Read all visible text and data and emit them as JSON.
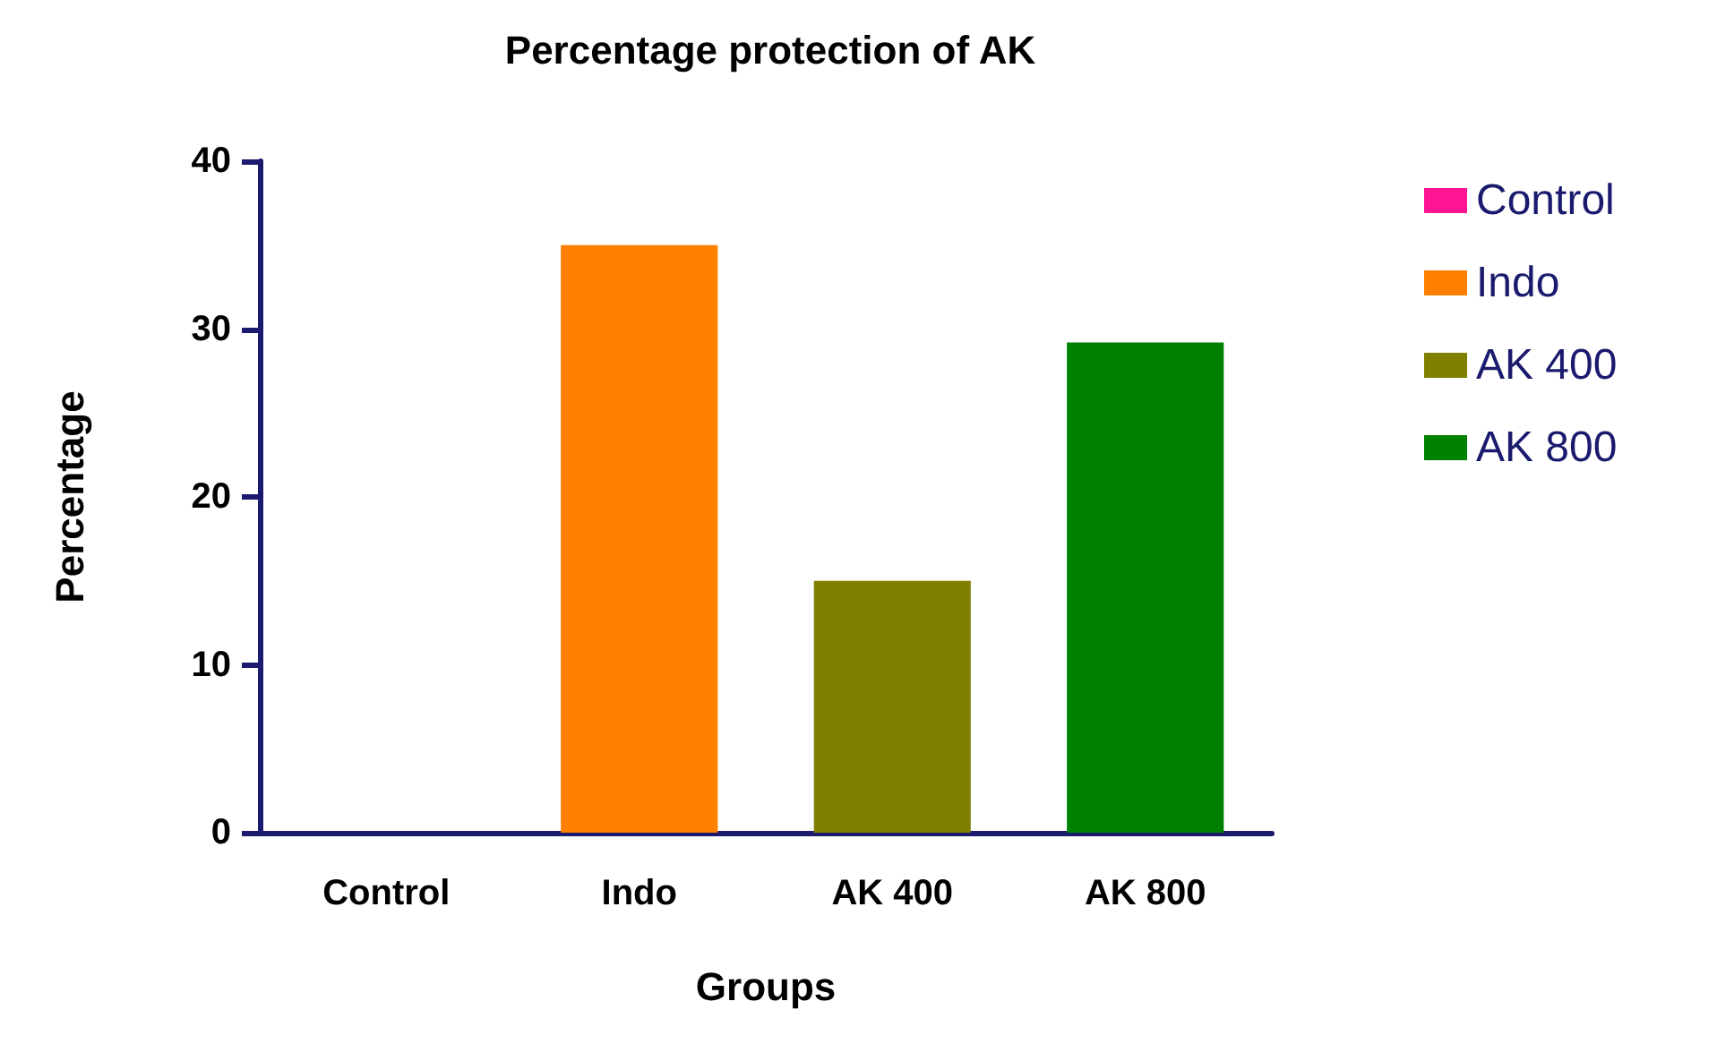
{
  "chart_data": {
    "type": "bar",
    "title": "Percentage protection of AK",
    "xlabel": "Groups",
    "ylabel": "Percentage",
    "categories": [
      "Control",
      "Indo",
      "AK 400",
      "AK 800"
    ],
    "series": [
      {
        "name": "Control",
        "color": "#ff1493",
        "values": [
          0,
          null,
          null,
          null
        ]
      },
      {
        "name": "Indo",
        "color": "#ff8000",
        "values": [
          null,
          35,
          null,
          null
        ]
      },
      {
        "name": "AK 400",
        "color": "#808000",
        "values": [
          null,
          null,
          15,
          null
        ]
      },
      {
        "name": "AK 800",
        "color": "#008000",
        "values": [
          null,
          null,
          null,
          29.2
        ]
      }
    ],
    "ylim": [
      0,
      40
    ],
    "yticks": [
      0,
      10,
      20,
      30,
      40
    ],
    "grid": false,
    "legend": "right"
  }
}
